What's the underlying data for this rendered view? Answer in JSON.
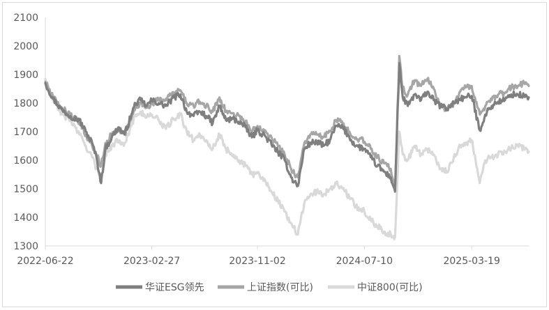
{
  "chart_data": {
    "type": "line",
    "title": "",
    "xlabel": "",
    "ylabel": "",
    "ylim": [
      1300,
      2100
    ],
    "yticks": [
      1300,
      1400,
      1500,
      1600,
      1700,
      1800,
      1900,
      2000,
      2100
    ],
    "xticks": [
      "2022-06-22",
      "2023-02-27",
      "2023-11-02",
      "2024-07-10",
      "2025-03-19"
    ],
    "x_range": [
      "2022-06-22",
      "2025-07-31"
    ],
    "grid": false,
    "legend_position": "bottom",
    "series": [
      {
        "name": "华证ESG领先",
        "color": "#7f7f7f",
        "points": [
          [
            "2022-06-22",
            1870
          ],
          [
            "2022-07-10",
            1815
          ],
          [
            "2022-08-01",
            1775
          ],
          [
            "2022-08-20",
            1755
          ],
          [
            "2022-09-10",
            1740
          ],
          [
            "2022-09-25",
            1700
          ],
          [
            "2022-10-10",
            1660
          ],
          [
            "2022-10-20",
            1610
          ],
          [
            "2022-10-31",
            1520
          ],
          [
            "2022-11-10",
            1640
          ],
          [
            "2022-11-25",
            1680
          ],
          [
            "2022-12-10",
            1715
          ],
          [
            "2022-12-25",
            1690
          ],
          [
            "2023-01-10",
            1760
          ],
          [
            "2023-01-20",
            1800
          ],
          [
            "2023-02-01",
            1810
          ],
          [
            "2023-02-15",
            1790
          ],
          [
            "2023-02-27",
            1810
          ],
          [
            "2023-03-15",
            1800
          ],
          [
            "2023-04-01",
            1790
          ],
          [
            "2023-04-20",
            1820
          ],
          [
            "2023-05-05",
            1830
          ],
          [
            "2023-05-20",
            1770
          ],
          [
            "2023-06-05",
            1755
          ],
          [
            "2023-06-20",
            1770
          ],
          [
            "2023-07-05",
            1755
          ],
          [
            "2023-07-20",
            1730
          ],
          [
            "2023-08-05",
            1790
          ],
          [
            "2023-08-20",
            1740
          ],
          [
            "2023-09-05",
            1745
          ],
          [
            "2023-09-20",
            1735
          ],
          [
            "2023-10-05",
            1715
          ],
          [
            "2023-10-20",
            1680
          ],
          [
            "2023-11-02",
            1705
          ],
          [
            "2023-11-20",
            1685
          ],
          [
            "2023-12-05",
            1655
          ],
          [
            "2023-12-20",
            1630
          ],
          [
            "2024-01-05",
            1600
          ],
          [
            "2024-01-20",
            1540
          ],
          [
            "2024-02-05",
            1510
          ],
          [
            "2024-02-20",
            1640
          ],
          [
            "2024-03-05",
            1660
          ],
          [
            "2024-03-20",
            1665
          ],
          [
            "2024-04-05",
            1650
          ],
          [
            "2024-04-20",
            1670
          ],
          [
            "2024-05-05",
            1720
          ],
          [
            "2024-05-20",
            1715
          ],
          [
            "2024-06-05",
            1680
          ],
          [
            "2024-06-20",
            1650
          ],
          [
            "2024-07-10",
            1640
          ],
          [
            "2024-07-25",
            1610
          ],
          [
            "2024-08-10",
            1580
          ],
          [
            "2024-08-25",
            1560
          ],
          [
            "2024-09-10",
            1540
          ],
          [
            "2024-09-20",
            1490
          ],
          [
            "2024-09-30",
            1940
          ],
          [
            "2024-10-08",
            1820
          ],
          [
            "2024-10-20",
            1790
          ],
          [
            "2024-11-05",
            1830
          ],
          [
            "2024-11-20",
            1810
          ],
          [
            "2024-12-05",
            1840
          ],
          [
            "2024-12-20",
            1810
          ],
          [
            "2025-01-05",
            1790
          ],
          [
            "2025-01-20",
            1780
          ],
          [
            "2025-02-05",
            1800
          ],
          [
            "2025-02-20",
            1815
          ],
          [
            "2025-03-05",
            1820
          ],
          [
            "2025-03-19",
            1825
          ],
          [
            "2025-04-07",
            1705
          ],
          [
            "2025-04-20",
            1760
          ],
          [
            "2025-05-05",
            1790
          ],
          [
            "2025-05-20",
            1805
          ],
          [
            "2025-06-05",
            1810
          ],
          [
            "2025-06-20",
            1830
          ],
          [
            "2025-07-05",
            1830
          ],
          [
            "2025-07-20",
            1825
          ],
          [
            "2025-07-31",
            1820
          ]
        ]
      },
      {
        "name": "上证指数(可比)",
        "color": "#a6a6a6",
        "points": [
          [
            "2022-06-22",
            1875
          ],
          [
            "2022-07-10",
            1820
          ],
          [
            "2022-08-01",
            1780
          ],
          [
            "2022-08-20",
            1760
          ],
          [
            "2022-09-10",
            1730
          ],
          [
            "2022-09-25",
            1690
          ],
          [
            "2022-10-10",
            1650
          ],
          [
            "2022-10-20",
            1620
          ],
          [
            "2022-10-31",
            1580
          ],
          [
            "2022-11-10",
            1660
          ],
          [
            "2022-11-25",
            1690
          ],
          [
            "2022-12-10",
            1700
          ],
          [
            "2022-12-25",
            1690
          ],
          [
            "2023-01-10",
            1745
          ],
          [
            "2023-01-20",
            1790
          ],
          [
            "2023-02-01",
            1800
          ],
          [
            "2023-02-15",
            1785
          ],
          [
            "2023-02-27",
            1800
          ],
          [
            "2023-03-15",
            1810
          ],
          [
            "2023-04-01",
            1815
          ],
          [
            "2023-04-20",
            1835
          ],
          [
            "2023-05-05",
            1845
          ],
          [
            "2023-05-20",
            1800
          ],
          [
            "2023-06-05",
            1790
          ],
          [
            "2023-06-20",
            1805
          ],
          [
            "2023-07-05",
            1790
          ],
          [
            "2023-07-20",
            1770
          ],
          [
            "2023-08-05",
            1820
          ],
          [
            "2023-08-20",
            1770
          ],
          [
            "2023-09-05",
            1765
          ],
          [
            "2023-09-20",
            1755
          ],
          [
            "2023-10-05",
            1735
          ],
          [
            "2023-10-20",
            1700
          ],
          [
            "2023-11-02",
            1720
          ],
          [
            "2023-11-20",
            1705
          ],
          [
            "2023-12-05",
            1680
          ],
          [
            "2023-12-20",
            1650
          ],
          [
            "2024-01-05",
            1620
          ],
          [
            "2024-01-20",
            1570
          ],
          [
            "2024-02-05",
            1540
          ],
          [
            "2024-02-20",
            1660
          ],
          [
            "2024-03-05",
            1690
          ],
          [
            "2024-03-20",
            1690
          ],
          [
            "2024-04-05",
            1680
          ],
          [
            "2024-04-20",
            1700
          ],
          [
            "2024-05-05",
            1740
          ],
          [
            "2024-05-20",
            1730
          ],
          [
            "2024-06-05",
            1700
          ],
          [
            "2024-06-20",
            1680
          ],
          [
            "2024-07-10",
            1665
          ],
          [
            "2024-07-25",
            1640
          ],
          [
            "2024-08-10",
            1610
          ],
          [
            "2024-08-25",
            1590
          ],
          [
            "2024-09-10",
            1570
          ],
          [
            "2024-09-20",
            1500
          ],
          [
            "2024-09-30",
            1965
          ],
          [
            "2024-10-08",
            1850
          ],
          [
            "2024-10-20",
            1830
          ],
          [
            "2024-11-05",
            1880
          ],
          [
            "2024-11-20",
            1860
          ],
          [
            "2024-12-05",
            1885
          ],
          [
            "2024-12-20",
            1850
          ],
          [
            "2025-01-05",
            1790
          ],
          [
            "2025-01-20",
            1780
          ],
          [
            "2025-02-05",
            1800
          ],
          [
            "2025-02-20",
            1840
          ],
          [
            "2025-03-05",
            1855
          ],
          [
            "2025-03-19",
            1860
          ],
          [
            "2025-04-07",
            1760
          ],
          [
            "2025-04-20",
            1790
          ],
          [
            "2025-05-05",
            1810
          ],
          [
            "2025-05-20",
            1830
          ],
          [
            "2025-06-05",
            1835
          ],
          [
            "2025-06-20",
            1855
          ],
          [
            "2025-07-05",
            1860
          ],
          [
            "2025-07-20",
            1870
          ],
          [
            "2025-07-31",
            1860
          ]
        ]
      },
      {
        "name": "中证800(可比)",
        "color": "#d9d9d9",
        "points": [
          [
            "2022-06-22",
            1885
          ],
          [
            "2022-07-10",
            1810
          ],
          [
            "2022-08-01",
            1760
          ],
          [
            "2022-08-20",
            1740
          ],
          [
            "2022-09-10",
            1690
          ],
          [
            "2022-09-25",
            1650
          ],
          [
            "2022-10-10",
            1610
          ],
          [
            "2022-10-20",
            1570
          ],
          [
            "2022-10-31",
            1540
          ],
          [
            "2022-11-10",
            1620
          ],
          [
            "2022-11-25",
            1650
          ],
          [
            "2022-12-10",
            1670
          ],
          [
            "2022-12-25",
            1660
          ],
          [
            "2023-01-10",
            1720
          ],
          [
            "2023-01-20",
            1760
          ],
          [
            "2023-02-01",
            1770
          ],
          [
            "2023-02-15",
            1750
          ],
          [
            "2023-02-27",
            1760
          ],
          [
            "2023-03-15",
            1740
          ],
          [
            "2023-04-01",
            1710
          ],
          [
            "2023-04-20",
            1745
          ],
          [
            "2023-05-05",
            1760
          ],
          [
            "2023-05-20",
            1700
          ],
          [
            "2023-06-05",
            1670
          ],
          [
            "2023-06-20",
            1690
          ],
          [
            "2023-07-05",
            1670
          ],
          [
            "2023-07-20",
            1640
          ],
          [
            "2023-08-05",
            1690
          ],
          [
            "2023-08-20",
            1640
          ],
          [
            "2023-09-05",
            1620
          ],
          [
            "2023-09-20",
            1600
          ],
          [
            "2023-10-05",
            1580
          ],
          [
            "2023-10-20",
            1550
          ],
          [
            "2023-11-02",
            1555
          ],
          [
            "2023-11-20",
            1530
          ],
          [
            "2023-12-05",
            1490
          ],
          [
            "2023-12-20",
            1460
          ],
          [
            "2024-01-05",
            1420
          ],
          [
            "2024-01-20",
            1380
          ],
          [
            "2024-02-05",
            1340
          ],
          [
            "2024-02-20",
            1450
          ],
          [
            "2024-03-05",
            1480
          ],
          [
            "2024-03-20",
            1490
          ],
          [
            "2024-04-05",
            1480
          ],
          [
            "2024-04-20",
            1500
          ],
          [
            "2024-05-05",
            1520
          ],
          [
            "2024-05-20",
            1500
          ],
          [
            "2024-06-05",
            1470
          ],
          [
            "2024-06-20",
            1440
          ],
          [
            "2024-07-10",
            1420
          ],
          [
            "2024-07-25",
            1390
          ],
          [
            "2024-08-10",
            1370
          ],
          [
            "2024-08-25",
            1350
          ],
          [
            "2024-09-10",
            1340
          ],
          [
            "2024-09-20",
            1330
          ],
          [
            "2024-09-30",
            1700
          ],
          [
            "2024-10-08",
            1620
          ],
          [
            "2024-10-20",
            1600
          ],
          [
            "2024-11-05",
            1650
          ],
          [
            "2024-11-20",
            1620
          ],
          [
            "2024-12-05",
            1640
          ],
          [
            "2024-12-20",
            1620
          ],
          [
            "2025-01-05",
            1570
          ],
          [
            "2025-01-20",
            1560
          ],
          [
            "2025-02-05",
            1610
          ],
          [
            "2025-02-20",
            1650
          ],
          [
            "2025-03-05",
            1660
          ],
          [
            "2025-03-19",
            1670
          ],
          [
            "2025-04-07",
            1520
          ],
          [
            "2025-04-20",
            1600
          ],
          [
            "2025-05-05",
            1610
          ],
          [
            "2025-05-20",
            1620
          ],
          [
            "2025-06-05",
            1630
          ],
          [
            "2025-06-20",
            1645
          ],
          [
            "2025-07-05",
            1650
          ],
          [
            "2025-07-20",
            1640
          ],
          [
            "2025-07-31",
            1630
          ]
        ]
      }
    ]
  }
}
